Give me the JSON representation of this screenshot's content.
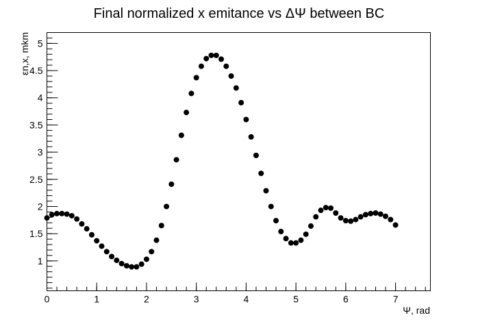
{
  "chart_data": {
    "type": "scatter",
    "title": "Final normalized x emitance vs ΔΨ between BC",
    "xlabel": "Ψ, rad",
    "ylabel": "εn,x, mkm",
    "xlim": [
      0,
      7.7
    ],
    "ylim": [
      0.45,
      5.2
    ],
    "grid": false,
    "marker_color": "#000000",
    "x_ticks": [
      0,
      1,
      2,
      3,
      4,
      5,
      6,
      7
    ],
    "x_tick_labels": [
      "0",
      "1",
      "2",
      "3",
      "4",
      "5",
      "6",
      "7"
    ],
    "y_ticks": [
      1,
      1.5,
      2,
      2.5,
      3,
      3.5,
      4,
      4.5,
      5
    ],
    "y_tick_labels": [
      "1",
      "1.5",
      "2",
      "2.5",
      "3",
      "3.5",
      "4",
      "4.5",
      "5"
    ],
    "series": [
      {
        "x": [
          0.0,
          0.1,
          0.2,
          0.3,
          0.4,
          0.5,
          0.6,
          0.7,
          0.8,
          0.9,
          1.0,
          1.1,
          1.2,
          1.3,
          1.4,
          1.5,
          1.6,
          1.7,
          1.8,
          1.9,
          2.0,
          2.1,
          2.2,
          2.3,
          2.4,
          2.5,
          2.6,
          2.7,
          2.8,
          2.9,
          3.0,
          3.1,
          3.2,
          3.3,
          3.4,
          3.5,
          3.6,
          3.7,
          3.8,
          3.9,
          4.0,
          4.1,
          4.2,
          4.3,
          4.4,
          4.5,
          4.6,
          4.7,
          4.8,
          4.9,
          5.0,
          5.1,
          5.2,
          5.3,
          5.4,
          5.5,
          5.6,
          5.7,
          5.8,
          5.9,
          6.0,
          6.1,
          6.2,
          6.3,
          6.4,
          6.5,
          6.6,
          6.7,
          6.8,
          6.9,
          7.0
        ],
        "y": [
          1.79,
          1.85,
          1.87,
          1.87,
          1.86,
          1.83,
          1.77,
          1.68,
          1.59,
          1.48,
          1.37,
          1.27,
          1.17,
          1.08,
          1.01,
          0.95,
          0.91,
          0.89,
          0.89,
          0.94,
          1.03,
          1.17,
          1.38,
          1.65,
          2.0,
          2.41,
          2.86,
          3.31,
          3.73,
          4.08,
          4.37,
          4.58,
          4.72,
          4.78,
          4.78,
          4.71,
          4.58,
          4.4,
          4.18,
          3.91,
          3.6,
          3.28,
          2.94,
          2.61,
          2.29,
          2.0,
          1.74,
          1.54,
          1.41,
          1.33,
          1.33,
          1.38,
          1.49,
          1.64,
          1.81,
          1.93,
          1.98,
          1.97,
          1.88,
          1.79,
          1.74,
          1.73,
          1.76,
          1.81,
          1.85,
          1.87,
          1.88,
          1.86,
          1.82,
          1.76,
          1.66
        ]
      }
    ]
  }
}
